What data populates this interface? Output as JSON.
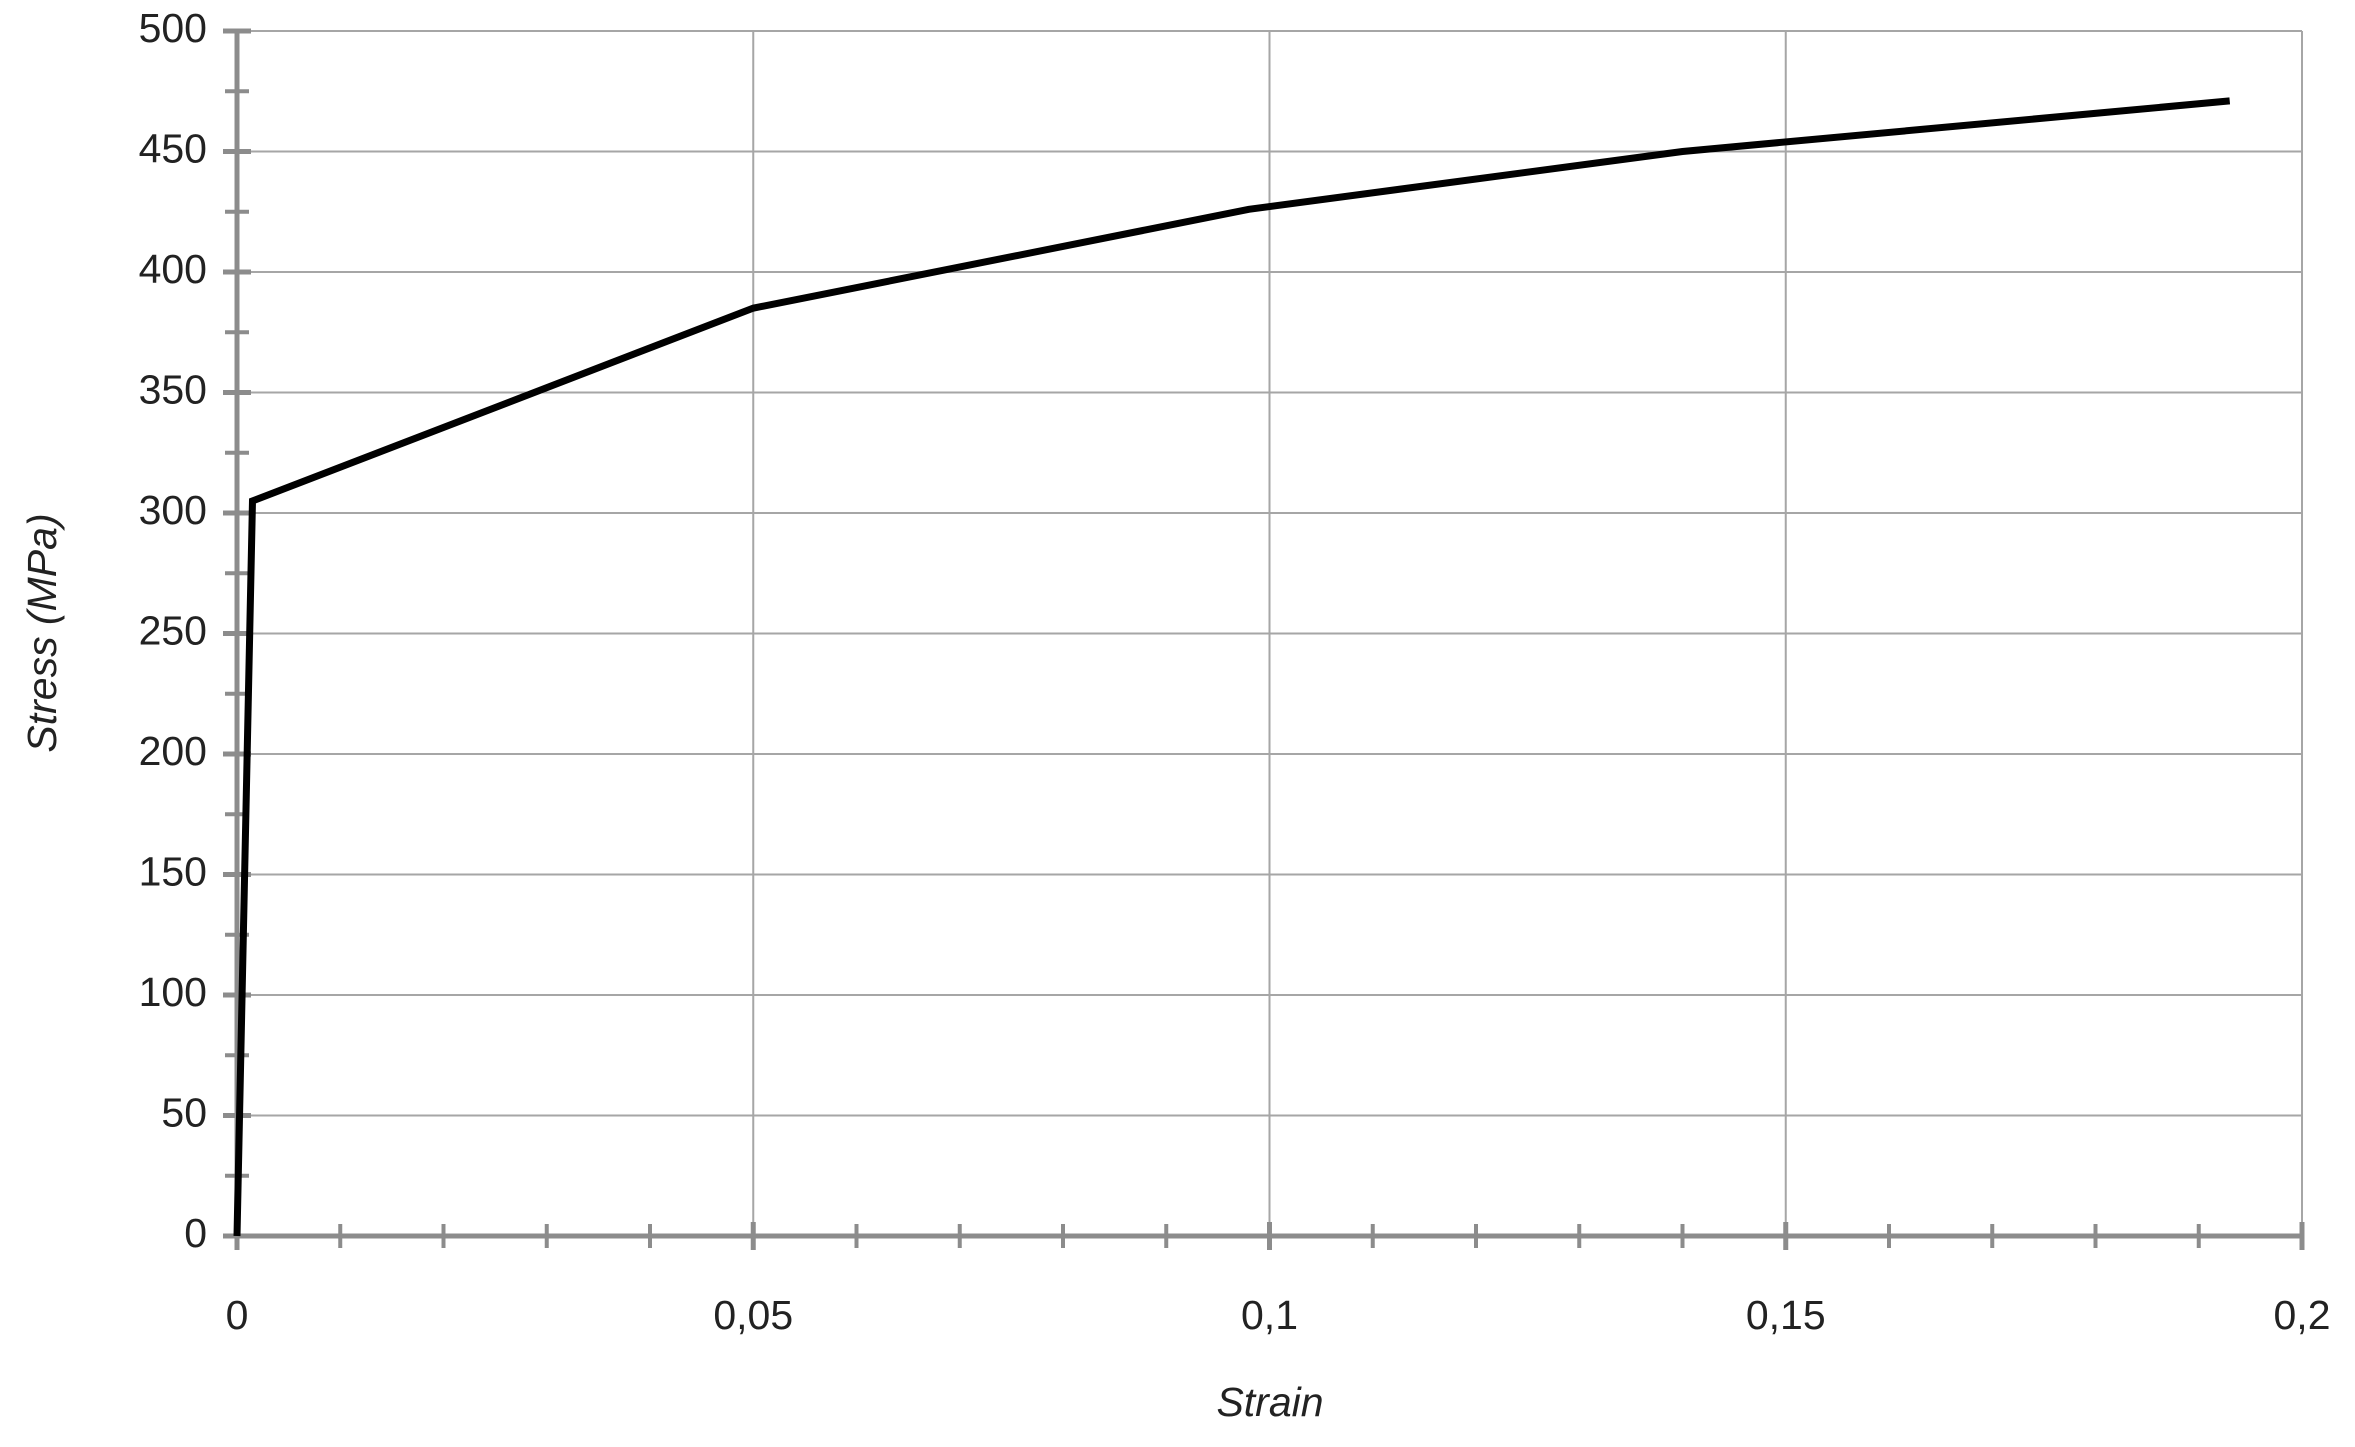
{
  "chart_data": {
    "type": "line",
    "x_label": "Strain",
    "y_label": "Stress (MPa)",
    "series": [
      {
        "color": "#000000",
        "x": [
          0,
          0.0015,
          0.05,
          0.098,
          0.14,
          0.193
        ],
        "values": [
          0,
          305,
          385,
          426,
          450,
          471
        ]
      }
    ],
    "xlim": [
      0,
      0.2
    ],
    "xticks": [
      0,
      {
        "value": 0.05,
        "label": "0,05"
      },
      {
        "value": 0.1,
        "label": "0,1"
      },
      {
        "value": 0.15,
        "label": "0,15"
      },
      {
        "value": 0.2,
        "label": "0,2"
      }
    ],
    "ylim": [
      0,
      500
    ],
    "yticks": [
      0,
      50,
      100,
      150,
      200,
      250,
      300,
      350,
      400,
      450,
      500
    ],
    "grid": true
  }
}
